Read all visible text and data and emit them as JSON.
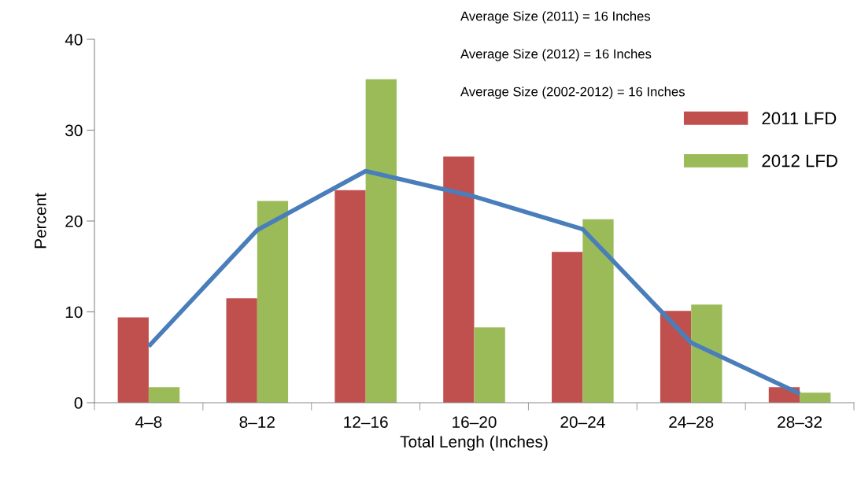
{
  "chart_data": {
    "type": "bar",
    "xlabel": "Total Lengh (Inches)",
    "ylabel": "Percent",
    "categories": [
      "4–8",
      "8–12",
      "12–16",
      "16–20",
      "20–24",
      "24–28",
      "28–32"
    ],
    "series": [
      {
        "name": "2011 LFD",
        "color": "#c0504d",
        "values": [
          9.4,
          11.5,
          23.4,
          27.1,
          16.6,
          10.1,
          1.7
        ]
      },
      {
        "name": "2012 LFD",
        "color": "#9bbb59",
        "values": [
          1.7,
          22.2,
          35.6,
          8.3,
          20.2,
          10.8,
          1.1
        ]
      },
      {
        "type": "line",
        "color": "#4a7ebb",
        "values": [
          6.2,
          19.0,
          25.5,
          22.7,
          19.1,
          6.6,
          1.0
        ]
      }
    ],
    "ylim": [
      0,
      40
    ],
    "yticks": [
      0,
      10,
      20,
      30,
      40
    ],
    "grid": false,
    "legend": "right",
    "annotations": [
      "Average Size (2011) = 16 Inches",
      "Average Size (2012) = 16 Inches",
      "Average Size (2002-2012) = 16 Inches"
    ]
  }
}
